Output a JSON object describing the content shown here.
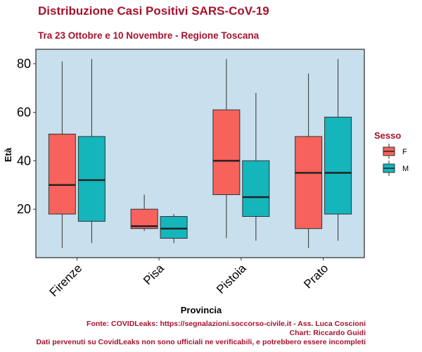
{
  "chart_data": {
    "type": "boxplot",
    "title": "Distribuzione Casi Positivi SARS-CoV-19",
    "subtitle": "Tra 23 Ottobre e 10 Novembre - Regione Toscana",
    "xlabel": "Provincia",
    "ylabel": "Età",
    "ylim": [
      0,
      86
    ],
    "yticks": [
      20,
      40,
      60,
      80
    ],
    "categories": [
      "Firenze",
      "Pisa",
      "Pistoia",
      "Prato"
    ],
    "legend": {
      "title": "Sesso",
      "position": "right"
    },
    "series": [
      {
        "name": "F",
        "color": "#f8625c",
        "boxes": [
          {
            "min": 4,
            "q1": 18,
            "median": 30,
            "q3": 51,
            "max": 81
          },
          {
            "min": 11,
            "q1": 12,
            "median": 13,
            "q3": 20,
            "max": 26
          },
          {
            "min": 8,
            "q1": 26,
            "median": 40,
            "q3": 61,
            "max": 82
          },
          {
            "min": 4,
            "q1": 12,
            "median": 35,
            "q3": 50,
            "max": 76
          }
        ]
      },
      {
        "name": "M",
        "color": "#14b6bc",
        "boxes": [
          {
            "min": 6,
            "q1": 15,
            "median": 32,
            "q3": 50,
            "max": 82
          },
          {
            "min": 6,
            "q1": 8,
            "median": 12,
            "q3": 17,
            "max": 18
          },
          {
            "min": 7,
            "q1": 17,
            "median": 25,
            "q3": 40,
            "max": 68
          },
          {
            "min": 7,
            "q1": 18,
            "median": 35,
            "q3": 58,
            "max": 82
          }
        ]
      }
    ],
    "panel_background": "#c8dfed",
    "grid": false
  },
  "caption": {
    "source": "Fonte: COVIDLeaks: https://segnalazioni.soccorso-civile.it - Ass. Luca Coscioni",
    "author": "Chart: Riccardo Guidi",
    "disclaimer": "Dati pervenuti su CovidLeaks non sono ufficiali ne verificabili, e potrebbero essere incompleti"
  }
}
